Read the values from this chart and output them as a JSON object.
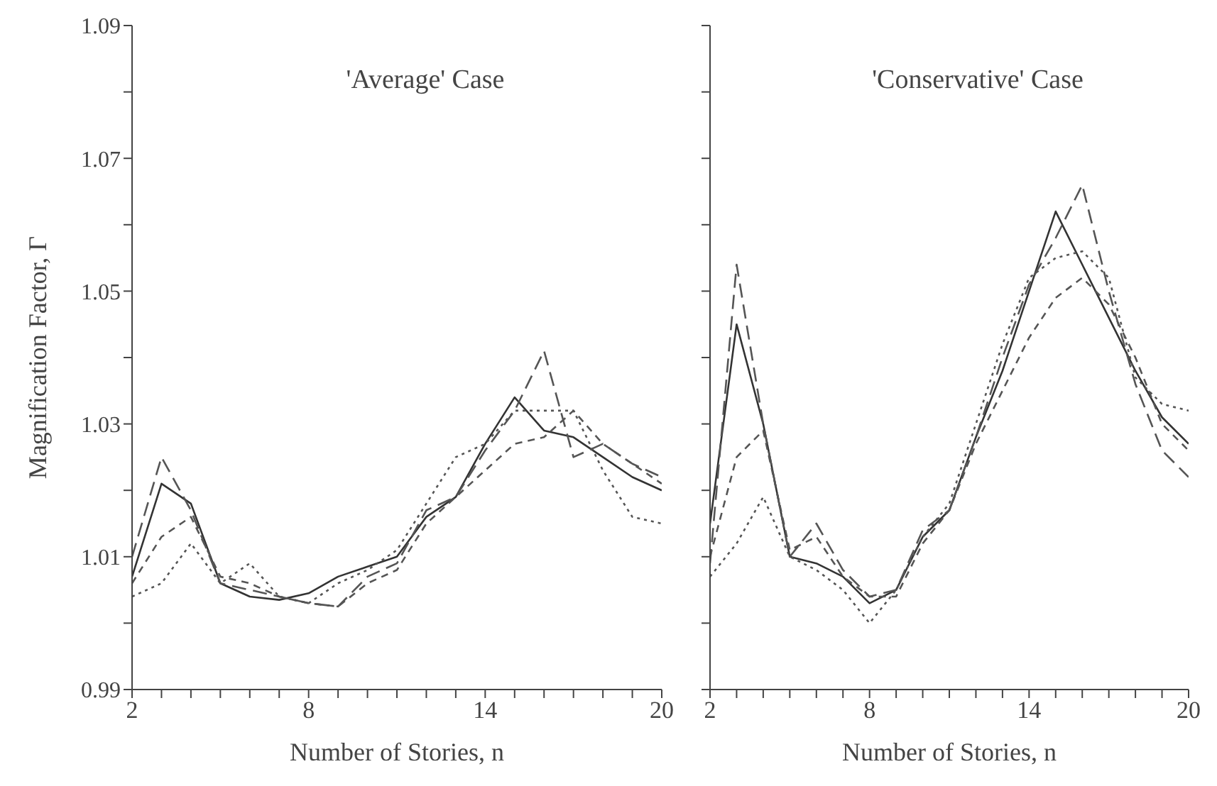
{
  "chart_data": [
    {
      "type": "line",
      "title": "'Average' Case",
      "xlabel": "Number of Stories, n",
      "ylabel": "Magnification Factor, Γ",
      "x": [
        2,
        3,
        4,
        5,
        6,
        7,
        8,
        9,
        10,
        11,
        12,
        13,
        14,
        15,
        16,
        17,
        18,
        19,
        20
      ],
      "xlim": [
        2,
        20
      ],
      "xticks": [
        2,
        {
          "value": 3,
          "label": null
        },
        {
          "value": 4,
          "label": null
        },
        {
          "value": 5,
          "label": null
        },
        {
          "value": 6,
          "label": null
        },
        {
          "value": 7,
          "label": null
        },
        8,
        {
          "value": 9,
          "label": null
        },
        {
          "value": 10,
          "label": null
        },
        {
          "value": 11,
          "label": null
        },
        {
          "value": 12,
          "label": null
        },
        {
          "value": 13,
          "label": null
        },
        14,
        {
          "value": 15,
          "label": null
        },
        {
          "value": 16,
          "label": null
        },
        {
          "value": 17,
          "label": null
        },
        {
          "value": 18,
          "label": null
        },
        {
          "value": 19,
          "label": null
        },
        20
      ],
      "ylim": [
        0.99,
        1.09
      ],
      "yticks": [
        0.99,
        {
          "value": 1.0,
          "label": null
        },
        1.01,
        {
          "value": 1.02,
          "label": null
        },
        1.03,
        {
          "value": 1.04,
          "label": null
        },
        1.05,
        {
          "value": 1.06,
          "label": null
        },
        1.07,
        {
          "value": 1.08,
          "label": null
        },
        1.09
      ],
      "grid": false,
      "marker": "none",
      "series": [
        {
          "color": "#333333",
          "line_style": "solid",
          "values": [
            1.007,
            1.021,
            1.018,
            1.006,
            1.004,
            1.0035,
            1.0045,
            1.007,
            1.0085,
            1.01,
            1.016,
            1.019,
            1.027,
            1.034,
            1.029,
            1.028,
            1.025,
            1.022,
            1.02
          ]
        },
        {
          "color": "#555555",
          "line_style": "dashed",
          "values": [
            1.01,
            1.025,
            1.017,
            1.006,
            1.005,
            1.004,
            1.003,
            1.0025,
            1.007,
            1.009,
            1.017,
            1.019,
            1.026,
            1.032,
            1.041,
            1.025,
            1.027,
            1.024,
            1.022
          ]
        },
        {
          "color": "#555555",
          "line_style": "dashed",
          "values": [
            1.006,
            1.013,
            1.016,
            1.007,
            1.006,
            1.004,
            1.003,
            1.0025,
            1.006,
            1.008,
            1.015,
            1.019,
            1.023,
            1.027,
            1.028,
            1.032,
            1.027,
            1.024,
            1.021
          ]
        },
        {
          "color": "#555555",
          "line_style": "dotted",
          "values": [
            1.004,
            1.006,
            1.012,
            1.006,
            1.009,
            1.004,
            1.003,
            1.006,
            1.008,
            1.011,
            1.018,
            1.025,
            1.027,
            1.032,
            1.032,
            1.032,
            1.023,
            1.016,
            1.015
          ]
        }
      ]
    },
    {
      "type": "line",
      "title": "'Conservative' Case",
      "xlabel": "Number of Stories, n",
      "x": [
        2,
        3,
        4,
        5,
        6,
        7,
        8,
        9,
        10,
        11,
        12,
        13,
        14,
        15,
        16,
        17,
        18,
        19,
        20
      ],
      "xlim": [
        2,
        20
      ],
      "xticks": [
        2,
        {
          "value": 3,
          "label": null
        },
        {
          "value": 4,
          "label": null
        },
        {
          "value": 5,
          "label": null
        },
        {
          "value": 6,
          "label": null
        },
        {
          "value": 7,
          "label": null
        },
        8,
        {
          "value": 9,
          "label": null
        },
        {
          "value": 10,
          "label": null
        },
        {
          "value": 11,
          "label": null
        },
        {
          "value": 12,
          "label": null
        },
        {
          "value": 13,
          "label": null
        },
        14,
        {
          "value": 15,
          "label": null
        },
        {
          "value": 16,
          "label": null
        },
        {
          "value": 17,
          "label": null
        },
        {
          "value": 18,
          "label": null
        },
        {
          "value": 19,
          "label": null
        },
        20
      ],
      "ylim": [
        0.99,
        1.09
      ],
      "yticks": [
        0.99,
        {
          "value": 1.0,
          "label": null
        },
        1.01,
        {
          "value": 1.02,
          "label": null
        },
        1.03,
        {
          "value": 1.04,
          "label": null
        },
        1.05,
        {
          "value": 1.06,
          "label": null
        },
        1.07,
        {
          "value": 1.08,
          "label": null
        },
        1.09
      ],
      "tick_labels": "x",
      "grid": false,
      "marker": "none",
      "series": [
        {
          "color": "#333333",
          "line_style": "solid",
          "values": [
            1.015,
            1.045,
            1.03,
            1.01,
            1.009,
            1.007,
            1.003,
            1.005,
            1.013,
            1.017,
            1.028,
            1.038,
            1.05,
            1.062,
            1.054,
            1.046,
            1.038,
            1.031,
            1.027
          ]
        },
        {
          "color": "#555555",
          "line_style": "dashed",
          "values": [
            1.009,
            1.054,
            1.03,
            1.01,
            1.015,
            1.008,
            1.004,
            1.005,
            1.014,
            1.017,
            1.028,
            1.04,
            1.051,
            1.058,
            1.066,
            1.05,
            1.036,
            1.026,
            1.022
          ]
        },
        {
          "color": "#555555",
          "line_style": "dashed",
          "values": [
            1.01,
            1.025,
            1.029,
            1.011,
            1.013,
            1.007,
            1.004,
            1.004,
            1.012,
            1.017,
            1.027,
            1.035,
            1.043,
            1.049,
            1.052,
            1.048,
            1.04,
            1.03,
            1.026
          ]
        },
        {
          "color": "#555555",
          "line_style": "dotted",
          "values": [
            1.007,
            1.012,
            1.019,
            1.01,
            1.008,
            1.005,
            1.0,
            1.005,
            1.013,
            1.018,
            1.03,
            1.042,
            1.052,
            1.055,
            1.056,
            1.052,
            1.037,
            1.033,
            1.032
          ]
        }
      ]
    }
  ]
}
